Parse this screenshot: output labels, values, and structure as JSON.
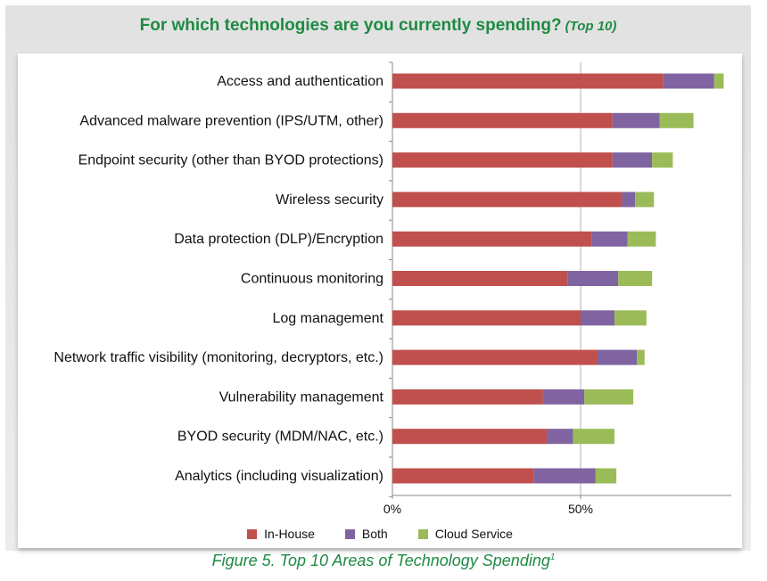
{
  "header": {
    "title": "For which technologies are you currently spending?",
    "subtitle": "(Top 10)"
  },
  "caption": {
    "text": "Figure 5. Top 10 Areas of Technology Spending",
    "footnote": "1"
  },
  "colors": {
    "in_house": "#c0504d",
    "both": "#8064a2",
    "cloud": "#9bbb59",
    "grid": "#b3b3b3",
    "title": "#1f8a43"
  },
  "chart_data": {
    "type": "bar",
    "orientation": "horizontal",
    "stacked": true,
    "title": "For which technologies are you currently spending? (Top 10)",
    "categories": [
      "Access and authentication",
      "Advanced malware prevention (IPS/UTM, other)",
      "Endpoint security (other than BYOD protections)",
      "Wireless security",
      "Data protection (DLP)/Encryption",
      "Continuous monitoring",
      "Log management",
      "Network traffic visibility (monitoring, decryptors, etc.)",
      "Vulnerability management",
      "BYOD security (MDM/NAC, etc.)",
      "Analytics (including visualization)"
    ],
    "series": [
      {
        "name": "In-House",
        "values": [
          72,
          58.5,
          58.5,
          61,
          53,
          46.5,
          50,
          54.5,
          40,
          41,
          37.5
        ]
      },
      {
        "name": "Both",
        "values": [
          13.5,
          12.5,
          10.5,
          3.5,
          9.5,
          13.5,
          9,
          10.5,
          11,
          7,
          16.5
        ]
      },
      {
        "name": "Cloud Service",
        "values": [
          2.5,
          9,
          5.5,
          5,
          7.5,
          9,
          8.5,
          2,
          13,
          11,
          5.5
        ]
      }
    ],
    "xlim": [
      0,
      90
    ],
    "x_ticks": [
      {
        "value": 0,
        "label": "0%"
      },
      {
        "value": 50,
        "label": "50%"
      }
    ],
    "grid": true,
    "legend": {
      "placement": "bottom",
      "entries": [
        "In-House",
        "Both",
        "Cloud Service"
      ]
    }
  }
}
